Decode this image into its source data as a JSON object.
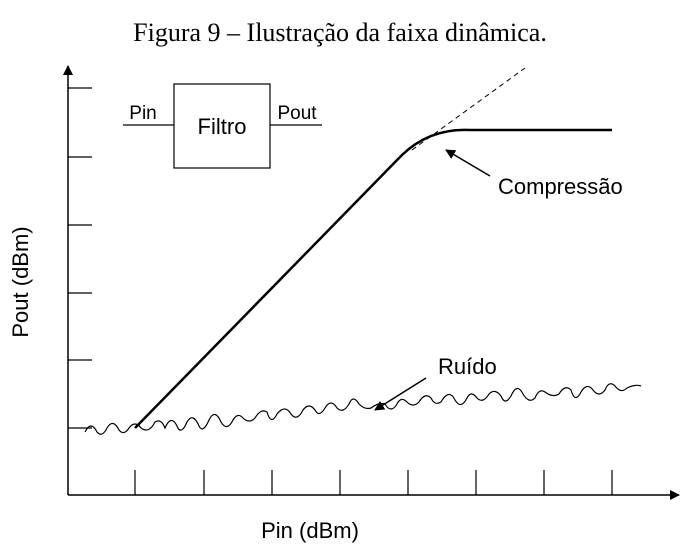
{
  "caption": "Figura 9 – Ilustração da faixa dinâmica.",
  "axes": {
    "x_label": "Pin (dBm)",
    "y_label": "Pout (dBm)"
  },
  "filter": {
    "label": "Filtro",
    "input": "Pin",
    "output": "Pout"
  },
  "annotations": {
    "compression": "Compressão",
    "noise": "Ruído"
  }
}
